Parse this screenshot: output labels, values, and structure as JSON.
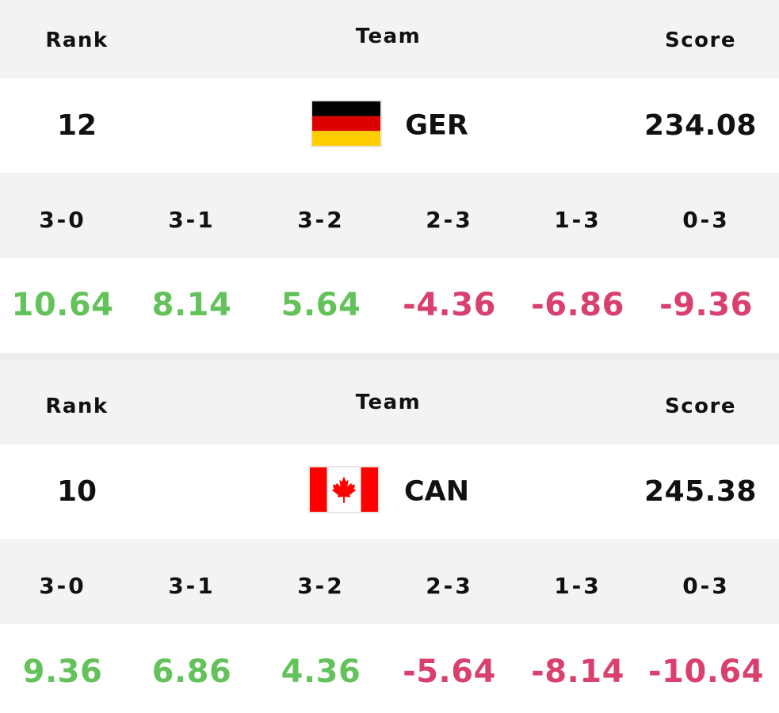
{
  "headers": {
    "rank": "Rank",
    "team": "Team",
    "score": "Score"
  },
  "scenarios": [
    "3-0",
    "3-1",
    "3-2",
    "2-3",
    "1-3",
    "0-3"
  ],
  "colors": {
    "positive": "#64c25a",
    "negative": "#d9406e",
    "header_bg": "#f3f3f3"
  },
  "teams": [
    {
      "rank": "12",
      "code": "GER",
      "flag_icon": "germany-flag-icon",
      "score": "234.08",
      "deltas": [
        "10.64",
        "8.14",
        "5.64",
        "-4.36",
        "-6.86",
        "-9.36"
      ]
    },
    {
      "rank": "10",
      "code": "CAN",
      "flag_icon": "canada-flag-icon",
      "score": "245.38",
      "deltas": [
        "9.36",
        "6.86",
        "4.36",
        "-5.64",
        "-8.14",
        "-10.64"
      ]
    }
  ]
}
